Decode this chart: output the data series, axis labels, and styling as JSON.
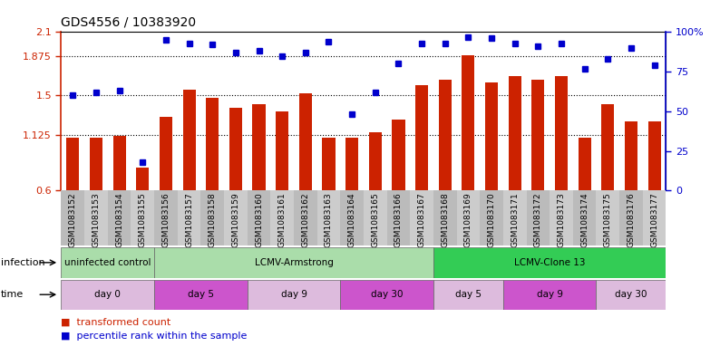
{
  "title": "GDS4556 / 10383920",
  "samples": [
    "GSM1083152",
    "GSM1083153",
    "GSM1083154",
    "GSM1083155",
    "GSM1083156",
    "GSM1083157",
    "GSM1083158",
    "GSM1083159",
    "GSM1083160",
    "GSM1083161",
    "GSM1083162",
    "GSM1083163",
    "GSM1083164",
    "GSM1083165",
    "GSM1083166",
    "GSM1083167",
    "GSM1083168",
    "GSM1083169",
    "GSM1083170",
    "GSM1083171",
    "GSM1083172",
    "GSM1083173",
    "GSM1083174",
    "GSM1083175",
    "GSM1083176",
    "GSM1083177"
  ],
  "bar_values": [
    1.1,
    1.1,
    1.12,
    0.82,
    1.3,
    1.55,
    1.48,
    1.38,
    1.42,
    1.35,
    1.52,
    1.1,
    1.1,
    1.15,
    1.27,
    1.6,
    1.65,
    1.88,
    1.62,
    1.68,
    1.65,
    1.68,
    1.1,
    1.42,
    1.25,
    1.25
  ],
  "dot_values": [
    60,
    62,
    63,
    18,
    95,
    93,
    92,
    87,
    88,
    85,
    87,
    94,
    48,
    62,
    80,
    93,
    93,
    97,
    96,
    93,
    91,
    93,
    77,
    83,
    90,
    79
  ],
  "ylim_left": [
    0.6,
    2.1
  ],
  "ylim_right": [
    0,
    100
  ],
  "yticks_left": [
    0.6,
    1.125,
    1.5,
    1.875,
    2.1
  ],
  "ytick_labels_left": [
    "0.6",
    "1.125",
    "1.5",
    "1.875",
    "2.1"
  ],
  "yticks_right": [
    0,
    25,
    50,
    75,
    100
  ],
  "ytick_labels_right": [
    "0",
    "25",
    "50",
    "75",
    "100%"
  ],
  "hlines": [
    1.125,
    1.5,
    1.875
  ],
  "bar_color": "#cc2200",
  "dot_color": "#0000cc",
  "bar_bottom": 0.6,
  "col_even": "#bbbbbb",
  "col_odd": "#cccccc",
  "infection_groups": [
    {
      "label": "uninfected control",
      "start": 0,
      "end": 4,
      "color": "#aaddaa"
    },
    {
      "label": "LCMV-Armstrong",
      "start": 4,
      "end": 16,
      "color": "#aaddaa"
    },
    {
      "label": "LCMV-Clone 13",
      "start": 16,
      "end": 26,
      "color": "#33cc55"
    }
  ],
  "time_groups": [
    {
      "label": "day 0",
      "start": 0,
      "end": 4,
      "color": "#ddbbdd"
    },
    {
      "label": "day 5",
      "start": 4,
      "end": 8,
      "color": "#cc55cc"
    },
    {
      "label": "day 9",
      "start": 8,
      "end": 12,
      "color": "#ddbbdd"
    },
    {
      "label": "day 30",
      "start": 12,
      "end": 16,
      "color": "#cc55cc"
    },
    {
      "label": "day 5",
      "start": 16,
      "end": 19,
      "color": "#ddbbdd"
    },
    {
      "label": "day 9",
      "start": 19,
      "end": 23,
      "color": "#cc55cc"
    },
    {
      "label": "day 30",
      "start": 23,
      "end": 26,
      "color": "#ddbbdd"
    }
  ],
  "bar_color_legend": "#cc2200",
  "dot_color_legend": "#0000cc"
}
